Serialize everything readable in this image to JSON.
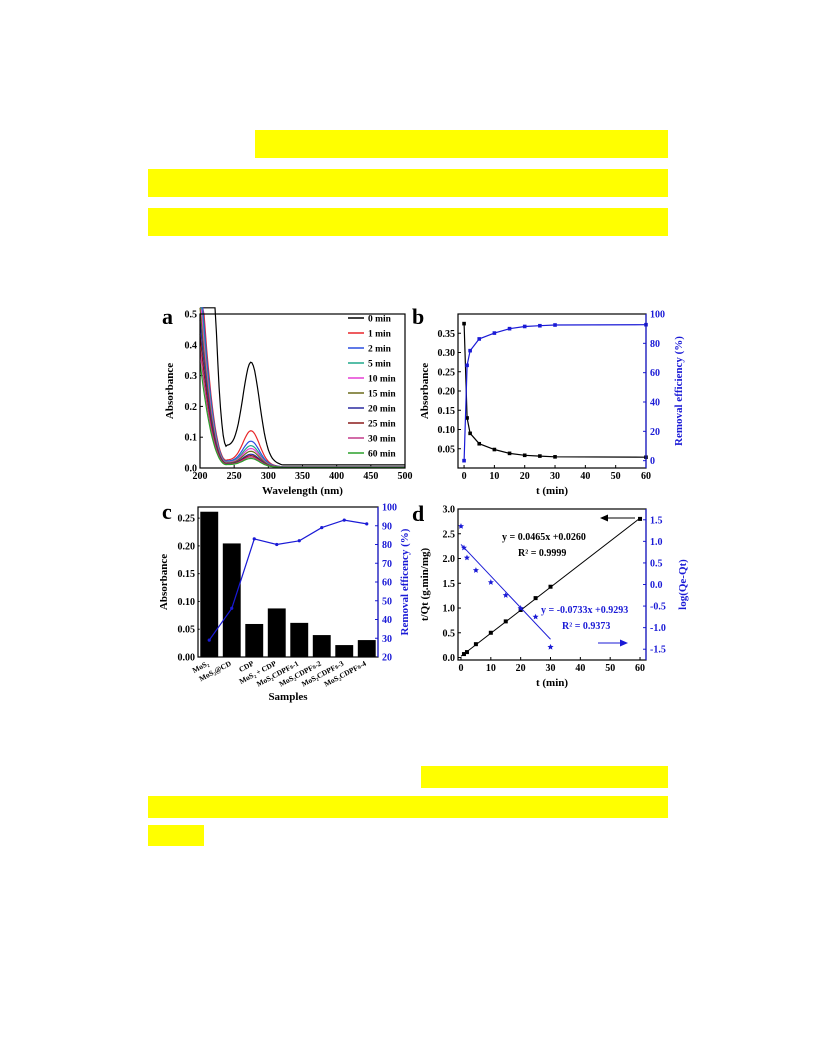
{
  "page": {
    "highlight_color": "#ffff00"
  },
  "chart_data": [
    {
      "panel": "a",
      "type": "line",
      "xlabel": "Wavelength (nm)",
      "ylabel": "Absorbance",
      "xlim": [
        200,
        500
      ],
      "ylim": [
        0,
        0.5
      ],
      "xticks": [
        200,
        250,
        300,
        350,
        400,
        450,
        500
      ],
      "yticks": [
        0.0,
        0.1,
        0.2,
        0.3,
        0.4,
        0.5
      ],
      "legend_position": "top-right",
      "peak_wavelength": 275,
      "series": [
        {
          "name": "0 min",
          "color": "#000000",
          "peak": 0.37,
          "valley": 0.07,
          "tail": 0.01
        },
        {
          "name": "1 min",
          "color": "#e8262a",
          "peak": 0.13,
          "valley": 0.025,
          "tail": 0.004
        },
        {
          "name": "2 min",
          "color": "#2a4de0",
          "peak": 0.095,
          "valley": 0.022,
          "tail": 0.004
        },
        {
          "name": "5 min",
          "color": "#1fa88a",
          "peak": 0.08,
          "valley": 0.02,
          "tail": 0.003
        },
        {
          "name": "10 min",
          "color": "#e63fd4",
          "peak": 0.07,
          "valley": 0.018,
          "tail": 0.003
        },
        {
          "name": "15 min",
          "color": "#6b6b1a",
          "peak": 0.06,
          "valley": 0.016,
          "tail": 0.003
        },
        {
          "name": "20 min",
          "color": "#2a2aa0",
          "peak": 0.05,
          "valley": 0.014,
          "tail": 0.002
        },
        {
          "name": "25 min",
          "color": "#8a1a1a",
          "peak": 0.045,
          "valley": 0.013,
          "tail": 0.002
        },
        {
          "name": "30 min",
          "color": "#c23a8a",
          "peak": 0.04,
          "valley": 0.012,
          "tail": 0.002
        },
        {
          "name": "60 min",
          "color": "#2aa02a",
          "peak": 0.035,
          "valley": 0.011,
          "tail": 0.002
        }
      ]
    },
    {
      "panel": "b",
      "type": "line",
      "xlabel": "t (min)",
      "ylabel": "Absorbance",
      "y2label": "Removal efficiency (%)",
      "xlim": [
        -2,
        60
      ],
      "ylim": [
        0.0,
        0.4
      ],
      "y2lim": [
        -5,
        100
      ],
      "xticks": [
        0,
        10,
        20,
        30,
        40,
        50,
        60
      ],
      "yticks": [
        0.05,
        0.1,
        0.15,
        0.2,
        0.25,
        0.3,
        0.35
      ],
      "ytick_labels": [
        "0.05",
        "0.10",
        "0.15",
        "0.20",
        "0.25",
        "0.30",
        "0.35"
      ],
      "y2ticks": [
        0,
        20,
        40,
        60,
        80,
        100
      ],
      "series": [
        {
          "name": "Absorbance",
          "axis": "left",
          "color": "#000000",
          "x": [
            0,
            1,
            2,
            5,
            10,
            15,
            20,
            25,
            30,
            60
          ],
          "y": [
            0.375,
            0.13,
            0.09,
            0.063,
            0.048,
            0.038,
            0.033,
            0.031,
            0.029,
            0.028
          ]
        },
        {
          "name": "Removal efficiency",
          "axis": "right",
          "color": "#1a1ad6",
          "x": [
            0,
            1,
            2,
            5,
            10,
            15,
            20,
            25,
            30,
            60
          ],
          "y": [
            0,
            65,
            75,
            83,
            87,
            90,
            91.5,
            92,
            92.5,
            92.7
          ]
        }
      ]
    },
    {
      "panel": "c",
      "type": "bar",
      "xlabel": "Samples",
      "ylabel": "Absorbance",
      "y2label": "Removal efficency (%)",
      "categories": [
        "MoS₂",
        "MoS₂@CD",
        "CDP",
        "MoS₂ + CDP",
        "MoS₂CDPFs-1",
        "MoS₂CDPFs-2",
        "MoS₂CDPFs-3",
        "MoS₂CDPFs-4"
      ],
      "ylim": [
        0,
        0.27
      ],
      "y2lim": [
        20,
        100
      ],
      "yticks": [
        0.0,
        0.05,
        0.1,
        0.15,
        0.2,
        0.25
      ],
      "ytick_labels": [
        "0.00",
        "0.05",
        "0.10",
        "0.15",
        "0.20",
        "0.25"
      ],
      "y2ticks": [
        20,
        30,
        40,
        50,
        60,
        70,
        80,
        90,
        100
      ],
      "series": [
        {
          "name": "Absorbance",
          "axis": "left",
          "color": "#000000",
          "values": [
            0.262,
            0.205,
            0.06,
            0.088,
            0.062,
            0.04,
            0.022,
            0.031
          ]
        },
        {
          "name": "Removal efficency",
          "axis": "right",
          "color": "#1a1ad6",
          "values": [
            29,
            46,
            83,
            80,
            82,
            89,
            93,
            91
          ]
        }
      ]
    },
    {
      "panel": "d",
      "type": "scatter",
      "xlabel": "t (min)",
      "ylabel": "t/Qt (g.min/mg)",
      "y2label": "log(Qe-Qt)",
      "xlim": [
        -1,
        62
      ],
      "ylim": [
        -0.05,
        3.0
      ],
      "y2lim": [
        -1.75,
        1.75
      ],
      "xticks": [
        0,
        10,
        20,
        30,
        40,
        50,
        60
      ],
      "yticks": [
        0.0,
        0.5,
        1.0,
        1.5,
        2.0,
        2.5,
        3.0
      ],
      "ytick_labels": [
        "0.0",
        "0.5",
        "1.0",
        "1.5",
        "2.0",
        "2.5",
        "3.0"
      ],
      "y2ticks": [
        -1.5,
        -1.0,
        -0.5,
        0.0,
        0.5,
        1.0,
        1.5
      ],
      "y2tick_labels": [
        "-1.5",
        "-1.0",
        "-0.5",
        "0.0",
        "0.5",
        "1.0",
        "1.5"
      ],
      "series": [
        {
          "name": "t/Qt",
          "axis": "left",
          "color": "#000000",
          "x": [
            1,
            2,
            5,
            10,
            15,
            20,
            25,
            30,
            60
          ],
          "y": [
            0.07,
            0.11,
            0.27,
            0.5,
            0.73,
            0.96,
            1.2,
            1.43,
            2.8
          ]
        },
        {
          "name": "log(Qe-Qt)",
          "axis": "right",
          "color": "#1a1ad6",
          "x": [
            0,
            1,
            2,
            5,
            10,
            15,
            20,
            25,
            30
          ],
          "y": [
            1.35,
            0.85,
            0.62,
            0.33,
            0.05,
            -0.25,
            -0.55,
            -0.75,
            -1.45
          ]
        }
      ],
      "annotations": {
        "eq1": "y = 0.0465x +0.0260",
        "r2_1": "R² = 0.9999",
        "eq2": "y = -0.0733x +0.9293",
        "r2_2": "R² = 0.9373"
      }
    }
  ]
}
